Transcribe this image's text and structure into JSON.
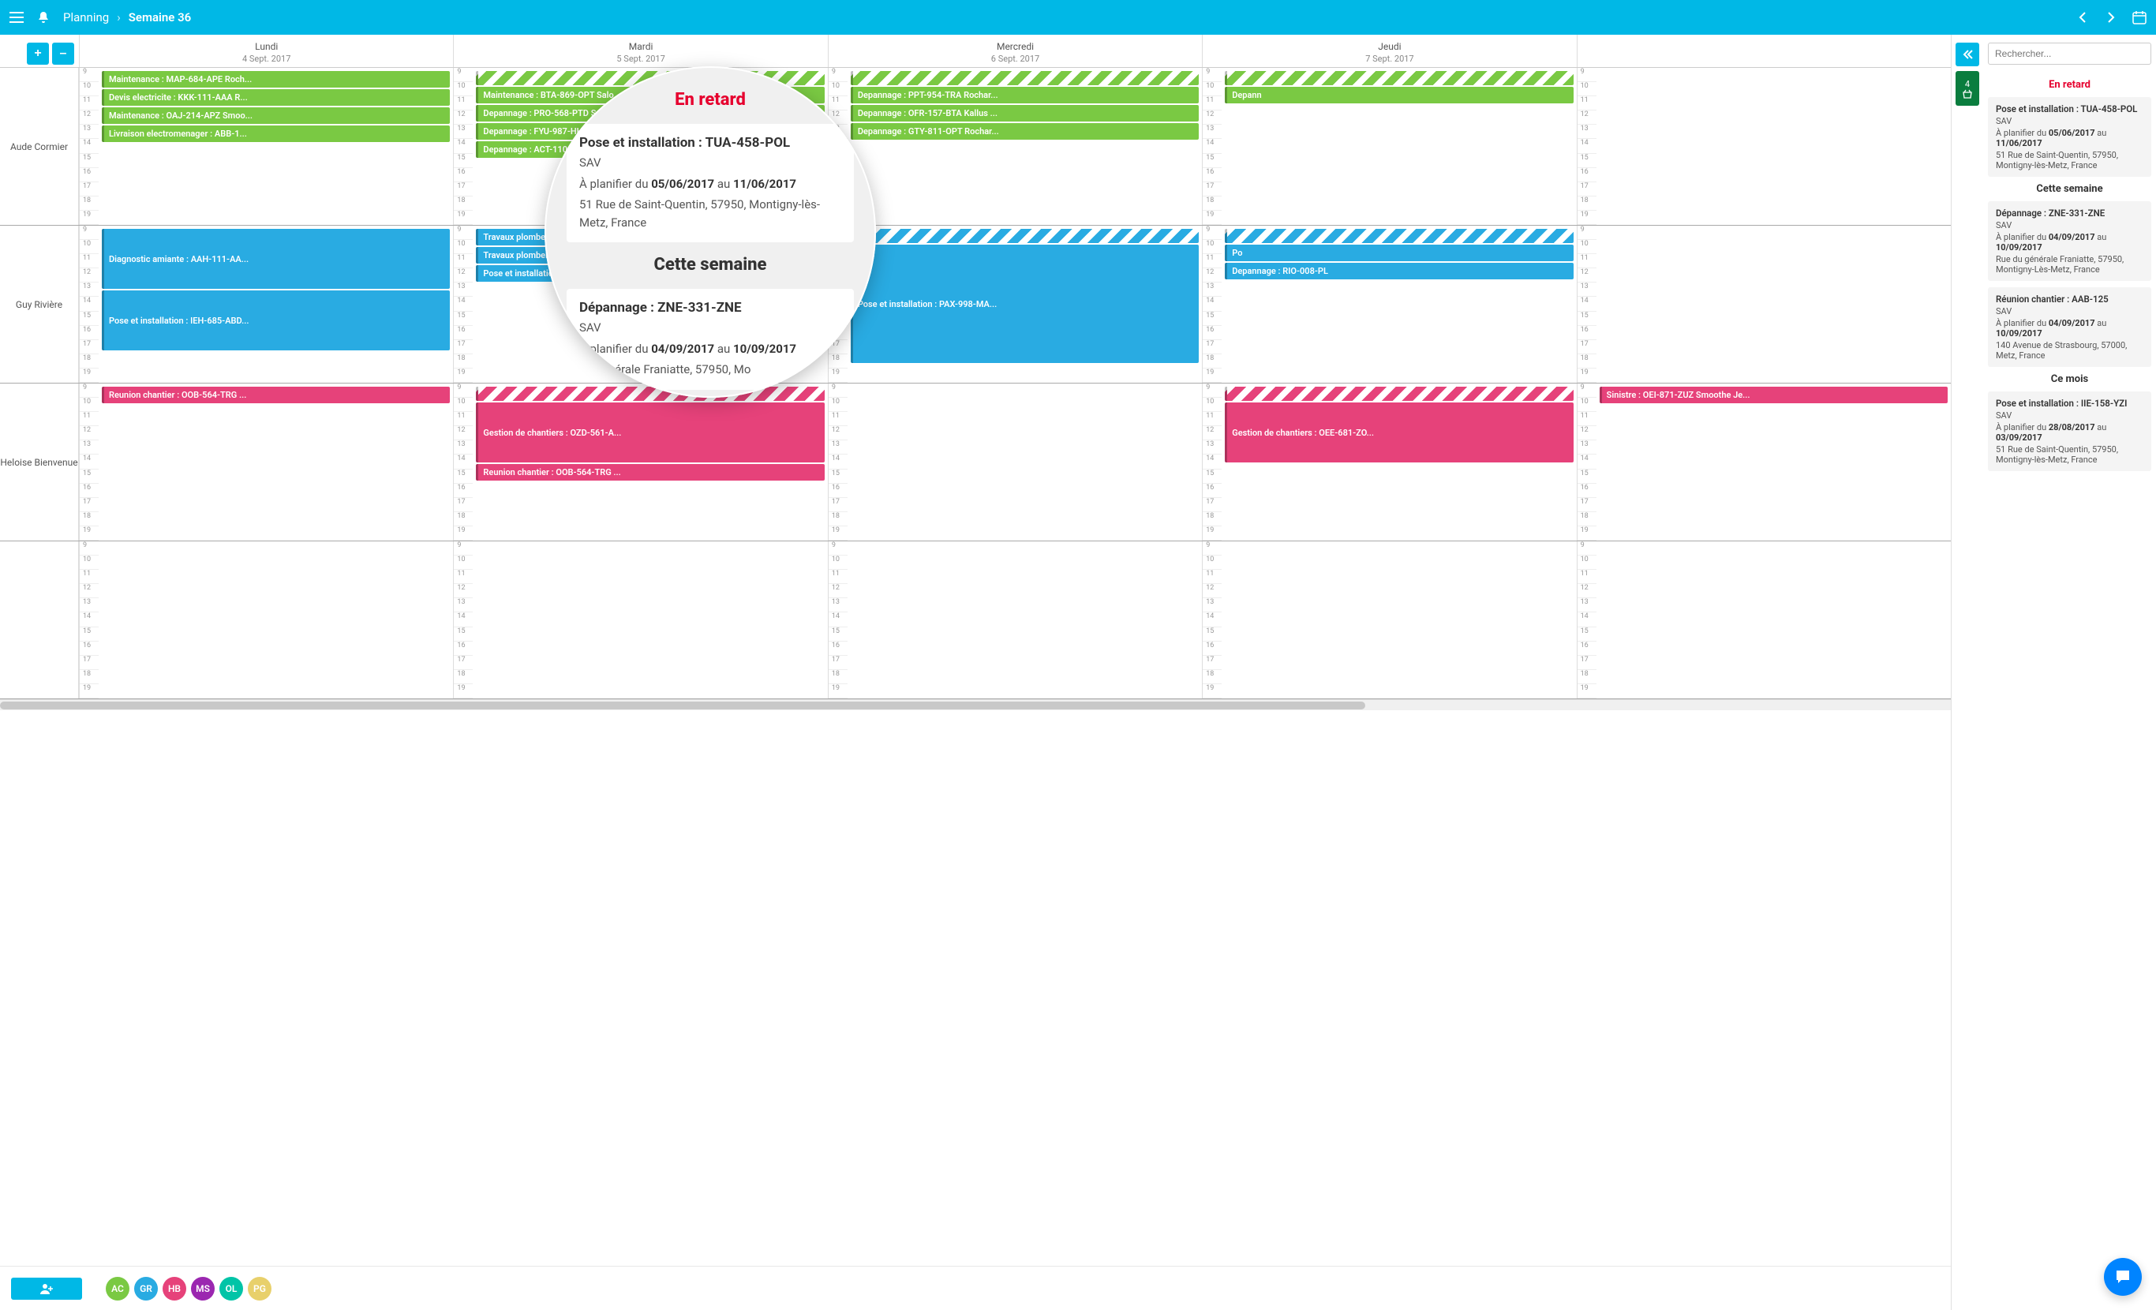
{
  "header": {
    "app": "Planning",
    "current": "Semaine 36"
  },
  "toolbar": {
    "plus": "+",
    "minus": "–"
  },
  "days": [
    {
      "name": "Lundi",
      "date": "4 Sept. 2017"
    },
    {
      "name": "Mardi",
      "date": "5 Sept. 2017"
    },
    {
      "name": "Mercredi",
      "date": "6 Sept. 2017"
    },
    {
      "name": "Jeudi",
      "date": "7 Sept. 2017"
    },
    {
      "name": "",
      "date": ""
    }
  ],
  "hours": [
    "9",
    "10",
    "11",
    "12",
    "13",
    "14",
    "15",
    "16",
    "17",
    "18",
    "19"
  ],
  "rows": [
    {
      "label": "Aude Cormier",
      "days": [
        [
          {
            "c": "green",
            "t": "Maintenance : MAP-684-APE Roch..."
          },
          {
            "c": "green",
            "t": "Devis electricite : KKK-111-AAA R..."
          },
          {
            "c": "green",
            "t": "Maintenance : OAJ-214-APZ Smoo..."
          },
          {
            "c": "green",
            "t": "Livraison electromenager : ABB-1..."
          }
        ],
        [
          {
            "c": "striped-green band",
            "t": ""
          },
          {
            "c": "green",
            "t": "Maintenance : BTA-869-OPT Salo..."
          },
          {
            "c": "green",
            "t": "Depannage : PRO-568-PTD Salom..."
          },
          {
            "c": "green",
            "t": "Depannage : FYU-987-HHG Kallus ..."
          },
          {
            "c": "green",
            "t": "Depannage : ACT-110-RIA Smooth..."
          }
        ],
        [
          {
            "c": "striped-green band",
            "t": ""
          },
          {
            "c": "green",
            "t": "Depannage : PPT-954-TRA Rochar..."
          },
          {
            "c": "green",
            "t": "Depannage : OFR-157-BTA Kallus ..."
          },
          {
            "c": "green",
            "t": "Depannage : GTY-811-OPT Rochar..."
          }
        ],
        [
          {
            "c": "striped-green band",
            "t": ""
          },
          {
            "c": "green",
            "t": "Depann"
          }
        ],
        []
      ]
    },
    {
      "label": "Guy Rivière",
      "days": [
        [
          {
            "c": "blue tall",
            "t": "Diagnostic amiante : AAH-111-AA..."
          },
          {
            "c": "blue tall",
            "t": "Pose et installation : IEH-685-ABD..."
          }
        ],
        [
          {
            "c": "blue",
            "t": "Travaux plomberie : LLL-111-AAA ..."
          },
          {
            "c": "blue",
            "t": "Travaux plomberie - LLM-111-AA..."
          },
          {
            "c": "blue",
            "t": "Pose et installation : UUB-129-OA..."
          }
        ],
        [
          {
            "c": "striped-blue band",
            "t": ""
          },
          {
            "c": "blue vtall",
            "t": "Pose et installation : PAX-998-MA..."
          }
        ],
        [
          {
            "c": "striped-blue band",
            "t": ""
          },
          {
            "c": "blue",
            "t": "Po"
          },
          {
            "c": "blue",
            "t": "Depannage : RIO-008-PL"
          }
        ],
        []
      ]
    },
    {
      "label": "Heloise Bienvenue",
      "days": [
        [
          {
            "c": "pink",
            "t": "Reunion chantier : OOB-564-TRG ..."
          }
        ],
        [
          {
            "c": "striped-pink band",
            "t": ""
          },
          {
            "c": "pink tall",
            "t": "Gestion de chantiers : OZD-561-A..."
          },
          {
            "c": "pink",
            "t": "Reunion chantier : OOB-564-TRG ..."
          }
        ],
        [],
        [
          {
            "c": "striped-pink band",
            "t": ""
          },
          {
            "c": "pink tall",
            "t": "Gestion de chantiers : OEE-681-ZO..."
          }
        ],
        [
          {
            "c": "pink",
            "t": "Sinistre : OEI-871-ZUZ Smoothe Je..."
          }
        ]
      ]
    },
    {
      "label": "",
      "days": [
        [],
        [],
        [],
        [],
        []
      ]
    }
  ],
  "lens": {
    "section1_title": "En retard",
    "card1": {
      "title": "Pose et installation : TUA-458-POL",
      "sub": "SAV",
      "plan_prefix": "À planifier du ",
      "d1": "05/06/2017",
      "mid": " au ",
      "d2": "11/06/2017",
      "addr": "51 Rue de Saint-Quentin, 57950, Montigny-lès-Metz, France"
    },
    "section2_title": "Cette semaine",
    "card2": {
      "title": "Dépannage : ZNE-331-ZNE",
      "sub": "SAV",
      "plan_prefix": "À planifier du ",
      "d1": "04/09/2017",
      "mid": " au ",
      "d2": "10/09/2017",
      "addr": "du générale Franiatte, 57950, Mo"
    }
  },
  "side": {
    "search_placeholder": "Rechercher...",
    "basket_count": "4",
    "sec_late": "En retard",
    "sec_week": "Cette semaine",
    "sec_month": "Ce mois",
    "cards": [
      {
        "title": "Pose et installation : TUA-458-POL",
        "sub": "SAV",
        "pp": "À planifier du ",
        "d1": "05/06/2017",
        "mid": " au ",
        "d2": "11/06/2017",
        "addr": "51 Rue de Saint-Quentin, 57950, Montigny-lès-Metz, France"
      },
      {
        "title": "Dépannage : ZNE-331-ZNE",
        "sub": "SAV",
        "pp": "À planifier du ",
        "d1": "04/09/2017",
        "mid": " au ",
        "d2": "10/09/2017",
        "addr": "Rue du générale Franiatte, 57950, Montigny-Lès-Metz, France"
      },
      {
        "title": "Réunion chantier : AAB-125",
        "sub": "SAV",
        "pp": "À planifier du ",
        "d1": "04/09/2017",
        "mid": " au ",
        "d2": "10/09/2017",
        "addr": "140 Avenue de Strasbourg, 57000, Metz, France"
      },
      {
        "title": "Pose et installation : IIE-158-YZI",
        "sub": "SAV",
        "pp": "À planifier du ",
        "d1": "28/08/2017",
        "mid": " au ",
        "d2": "03/09/2017",
        "addr": "51 Rue de Saint-Quentin, 57950, Montigny-lès-Metz, France"
      }
    ]
  },
  "avatars": [
    {
      "i": "AC",
      "c": "#7ac943"
    },
    {
      "i": "GR",
      "c": "#29abe2"
    },
    {
      "i": "HB",
      "c": "#e6427a"
    },
    {
      "i": "MS",
      "c": "#9b27b0"
    },
    {
      "i": "OL",
      "c": "#00c4a7"
    },
    {
      "i": "PG",
      "c": "#e8d06b"
    }
  ]
}
